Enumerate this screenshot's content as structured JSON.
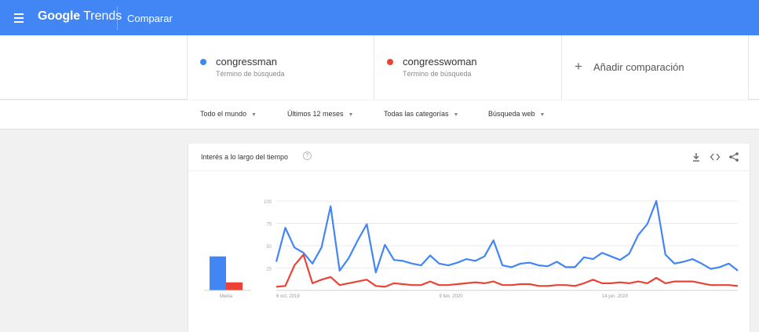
{
  "header": {
    "logo_brand": "Google",
    "logo_product": "Trends",
    "compare_tab": "Comparar"
  },
  "terms": [
    {
      "name": "congressman",
      "type": "Término de búsqueda",
      "color": "#4285f4"
    },
    {
      "name": "congresswoman",
      "type": "Término de búsqueda",
      "color": "#ea4335"
    }
  ],
  "add_comparison": {
    "icon": "+",
    "label": "Añadir comparación"
  },
  "filters": {
    "region": "Todo el mundo",
    "period": "Últimos 12 meses",
    "category": "Todas las categorías",
    "search_type": "Búsqueda web"
  },
  "card": {
    "title": "Interés a lo largo del tiempo",
    "help_icon": "?",
    "icons": [
      "download-icon",
      "embed-icon",
      "share-icon"
    ]
  },
  "chart_data": {
    "type": "line",
    "ylim": [
      0,
      100
    ],
    "y_ticks": [
      "100",
      "75",
      "50",
      "25"
    ],
    "x_tick_labels": [
      {
        "label": "6 oct. 2019",
        "index": 0
      },
      {
        "label": "9 feb. 2020",
        "index": 18
      },
      {
        "label": "14 jun. 2020",
        "index": 36
      }
    ],
    "average": {
      "label": "Media",
      "values": [
        38,
        9
      ]
    },
    "series": [
      {
        "color": "#4285f4",
        "values": [
          32,
          70,
          48,
          42,
          30,
          48,
          94,
          22,
          36,
          56,
          74,
          20,
          51,
          34,
          33,
          30,
          28,
          39,
          30,
          28,
          31,
          35,
          33,
          38,
          56,
          28,
          26,
          30,
          31,
          28,
          27,
          32,
          26,
          26,
          37,
          35,
          42,
          38,
          34,
          41,
          62,
          74,
          100,
          40,
          30,
          32,
          35,
          30,
          24,
          26,
          30,
          22
        ]
      },
      {
        "color": "#ea4335",
        "values": [
          4,
          5,
          28,
          40,
          8,
          12,
          15,
          6,
          8,
          10,
          12,
          5,
          4,
          8,
          7,
          6,
          6,
          10,
          6,
          6,
          7,
          8,
          9,
          8,
          10,
          6,
          6,
          7,
          7,
          5,
          5,
          6,
          6,
          5,
          8,
          12,
          8,
          8,
          9,
          8,
          10,
          8,
          14,
          8,
          10,
          10,
          10,
          8,
          6,
          6,
          6,
          5
        ]
      }
    ]
  }
}
